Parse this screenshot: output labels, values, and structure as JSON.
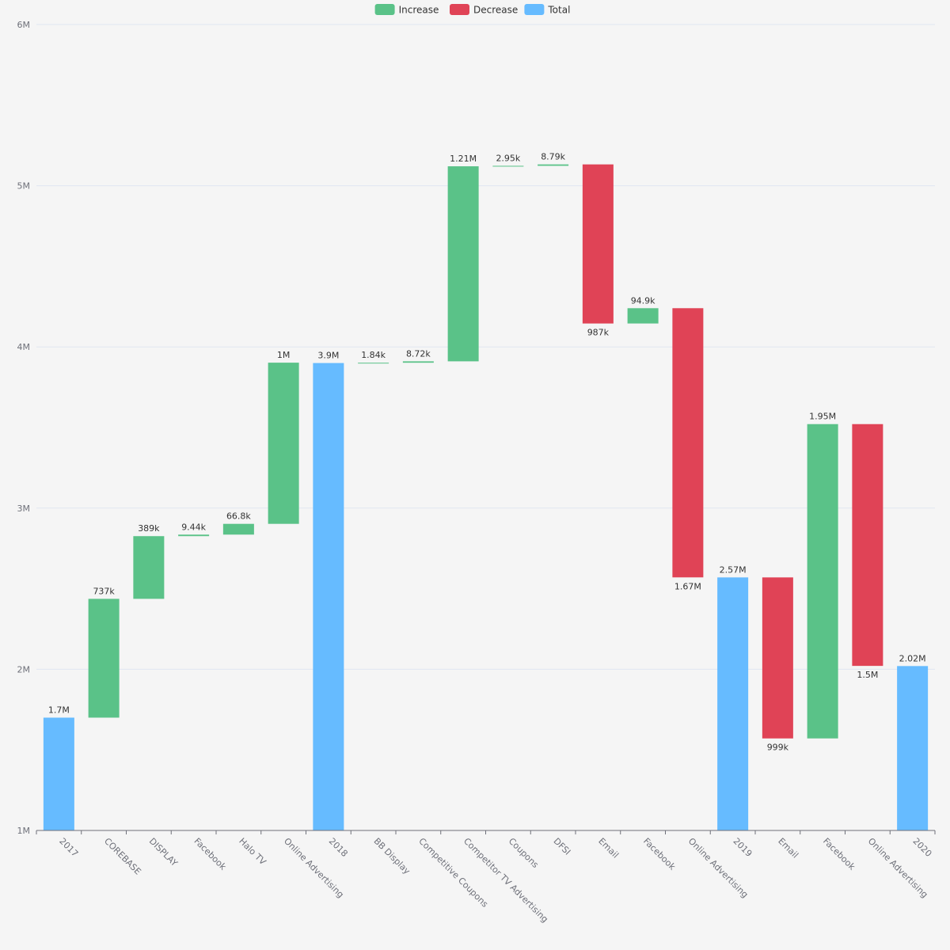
{
  "legend": {
    "items": [
      {
        "key": "increase",
        "label": "Increase",
        "color": "#5ac288"
      },
      {
        "key": "decrease",
        "label": "Decrease",
        "color": "#e04356"
      },
      {
        "key": "total",
        "label": "Total",
        "color": "#66bbff"
      }
    ]
  },
  "chart_data": {
    "type": "bar",
    "subtype": "waterfall",
    "title": "",
    "xlabel": "",
    "ylabel": "",
    "ylim": [
      1000000,
      6000000
    ],
    "yticks": [
      {
        "value": 1000000,
        "label": "1M"
      },
      {
        "value": 2000000,
        "label": "2M"
      },
      {
        "value": 3000000,
        "label": "3M"
      },
      {
        "value": 4000000,
        "label": "4M"
      },
      {
        "value": 5000000,
        "label": "5M"
      },
      {
        "value": 6000000,
        "label": "6M"
      }
    ],
    "grid": true,
    "legend_position": "top-center",
    "categories": [
      "2017",
      "COREBASE",
      "DISPLAY",
      "Facebook",
      "Halo TV",
      "Online Advertising",
      "2018",
      "BB Display",
      "Competitive Coupons",
      "Competitor TV Advertising",
      "Coupons",
      "DFSI",
      "Email",
      "Facebook",
      "Online Advertising",
      "2019",
      "Email",
      "Facebook",
      "Online Advertising",
      "2020"
    ],
    "bars": [
      {
        "category": "2017",
        "kind": "total",
        "start": 0,
        "end": 1700000,
        "label": "1.7M"
      },
      {
        "category": "COREBASE",
        "kind": "increase",
        "start": 1700000,
        "end": 2437000,
        "label": "737k"
      },
      {
        "category": "DISPLAY",
        "kind": "increase",
        "start": 2437000,
        "end": 2826000,
        "label": "389k"
      },
      {
        "category": "Facebook",
        "kind": "increase",
        "start": 2826000,
        "end": 2835440,
        "label": "9.44k"
      },
      {
        "category": "Halo TV",
        "kind": "increase",
        "start": 2835440,
        "end": 2902240,
        "label": "66.8k"
      },
      {
        "category": "Online Advertising",
        "kind": "increase",
        "start": 2902240,
        "end": 3902240,
        "label": "1M"
      },
      {
        "category": "2018",
        "kind": "total",
        "start": 0,
        "end": 3900000,
        "label": "3.9M"
      },
      {
        "category": "BB Display",
        "kind": "increase",
        "start": 3900000,
        "end": 3901840,
        "label": "1.84k"
      },
      {
        "category": "Competitive Coupons",
        "kind": "increase",
        "start": 3901840,
        "end": 3910560,
        "label": "8.72k"
      },
      {
        "category": "Competitor TV Advertising",
        "kind": "increase",
        "start": 3910560,
        "end": 5120560,
        "label": "1.21M"
      },
      {
        "category": "Coupons",
        "kind": "increase",
        "start": 5120560,
        "end": 5123510,
        "label": "2.95k"
      },
      {
        "category": "DFSI",
        "kind": "increase",
        "start": 5123510,
        "end": 5132300,
        "label": "8.79k"
      },
      {
        "category": "Email",
        "kind": "decrease",
        "start": 5132300,
        "end": 4145300,
        "label": "987k"
      },
      {
        "category": "Facebook",
        "kind": "increase",
        "start": 4145300,
        "end": 4240200,
        "label": "94.9k"
      },
      {
        "category": "Online Advertising",
        "kind": "decrease",
        "start": 4240200,
        "end": 2570200,
        "label": "1.67M"
      },
      {
        "category": "2019",
        "kind": "total",
        "start": 0,
        "end": 2570000,
        "label": "2.57M"
      },
      {
        "category": "Email",
        "kind": "decrease",
        "start": 2570000,
        "end": 1571000,
        "label": "999k"
      },
      {
        "category": "Facebook",
        "kind": "increase",
        "start": 1571000,
        "end": 3521000,
        "label": "1.95M"
      },
      {
        "category": "Online Advertising",
        "kind": "decrease",
        "start": 3521000,
        "end": 2021000,
        "label": "1.5M"
      },
      {
        "category": "2020",
        "kind": "total",
        "start": 0,
        "end": 2020000,
        "label": "2.02M"
      }
    ]
  }
}
